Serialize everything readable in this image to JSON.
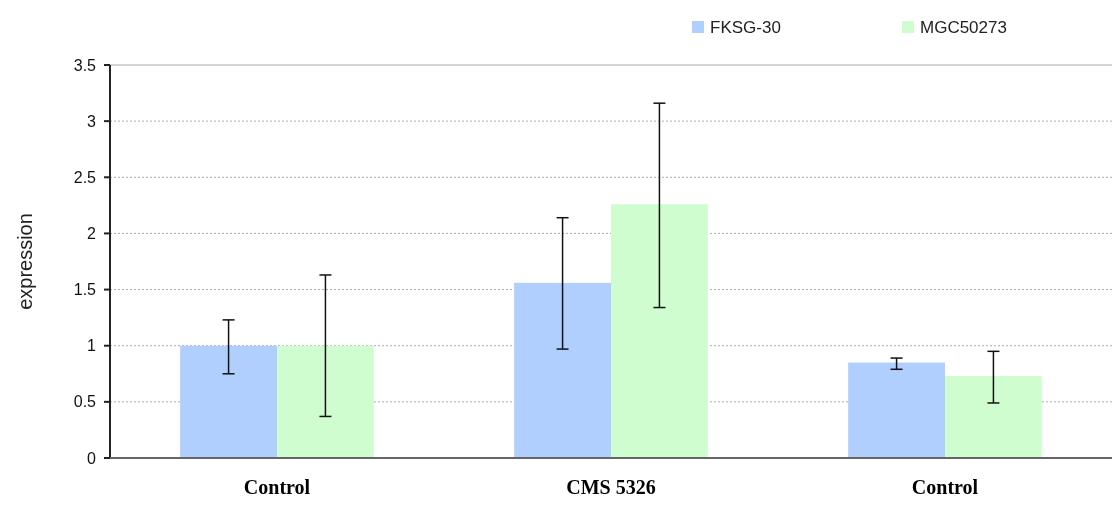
{
  "chart_data": {
    "type": "bar",
    "ylabel": "expression",
    "categories": [
      "Control",
      "CMS 5326",
      "Control"
    ],
    "series": [
      {
        "name": "FKSG-30",
        "color": "#b0cfff",
        "values": [
          1.0,
          1.56,
          0.85
        ],
        "errors": [
          [
            0.75,
            1.23
          ],
          [
            0.97,
            2.14
          ],
          [
            0.79,
            0.89
          ]
        ]
      },
      {
        "name": "MGC50273",
        "color": "#d0fdd0",
        "values": [
          1.0,
          2.26,
          0.73
        ],
        "errors": [
          [
            0.37,
            1.63
          ],
          [
            1.34,
            3.16
          ],
          [
            0.49,
            0.95
          ]
        ]
      }
    ],
    "ylim": [
      0,
      3.5
    ],
    "yticks": [
      0,
      0.5,
      1,
      1.5,
      2,
      2.5,
      3,
      3.5
    ],
    "grid": "y",
    "legend": "top right"
  }
}
